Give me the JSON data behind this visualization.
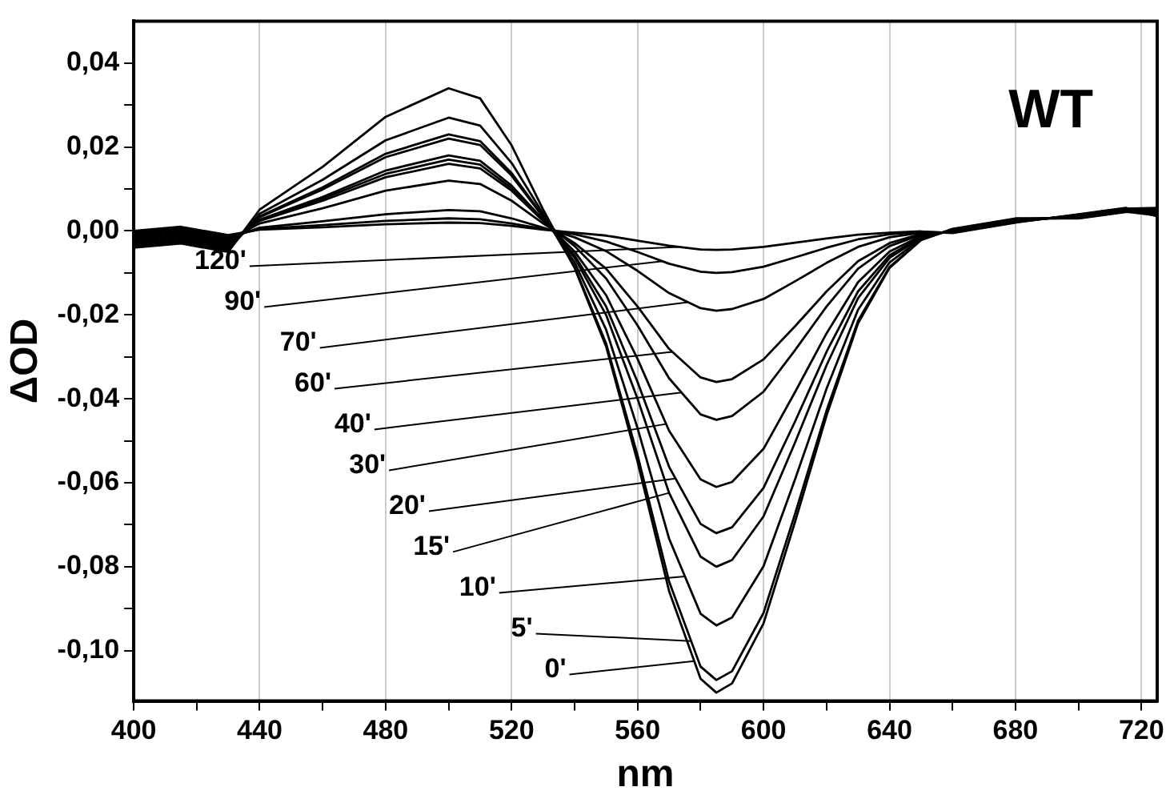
{
  "chart_data": {
    "type": "line",
    "xlabel": "nm",
    "ylabel": "ΔOD",
    "annotations": [
      "WT",
      {
        "text": "120'",
        "x": 573,
        "y": -0.0038
      },
      {
        "text": "90'",
        "x": 568,
        "y": -0.0072
      },
      {
        "text": "70'",
        "x": 576,
        "y": -0.017
      },
      {
        "text": "60'",
        "x": 571,
        "y": -0.0288
      },
      {
        "text": "40'",
        "x": 574,
        "y": -0.0385
      },
      {
        "text": "30'",
        "x": 569,
        "y": -0.046
      },
      {
        "text": "20'",
        "x": 572,
        "y": -0.059
      },
      {
        "text": "15'",
        "x": 570,
        "y": -0.0624
      },
      {
        "text": "10'",
        "x": 575,
        "y": -0.0823
      },
      {
        "text": "5'",
        "x": 577,
        "y": -0.0977
      },
      {
        "text": "0'",
        "x": 578,
        "y": -0.1025
      }
    ],
    "x": [
      400,
      415,
      430,
      440,
      460,
      480,
      500,
      510,
      520,
      530,
      540,
      550,
      560,
      570,
      580,
      585,
      590,
      600,
      610,
      620,
      630,
      640,
      650,
      660,
      680,
      700,
      715,
      725
    ],
    "xlim": [
      400,
      725
    ],
    "ylim": [
      -0.112,
      0.05
    ],
    "xticks": [
      400,
      {
        "value": 420,
        "label": null
      },
      440,
      {
        "value": 460,
        "label": null
      },
      480,
      {
        "value": 500,
        "label": null
      },
      520,
      {
        "value": 540,
        "label": null
      },
      560,
      {
        "value": 580,
        "label": null
      },
      600,
      {
        "value": 620,
        "label": null
      },
      640,
      {
        "value": 660,
        "label": null
      },
      680,
      {
        "value": 700,
        "label": null
      },
      720
    ],
    "yticks": [
      {
        "value": -0.1,
        "label": "-0,10"
      },
      {
        "value": -0.09,
        "label": null
      },
      {
        "value": -0.08,
        "label": "-0,08"
      },
      {
        "value": -0.07,
        "label": null
      },
      {
        "value": -0.06,
        "label": "-0,06"
      },
      {
        "value": -0.05,
        "label": null
      },
      {
        "value": -0.04,
        "label": "-0,04"
      },
      {
        "value": -0.03,
        "label": null
      },
      {
        "value": -0.02,
        "label": "-0,02"
      },
      {
        "value": -0.01,
        "label": null
      },
      {
        "value": 0,
        "label": "0,00"
      },
      {
        "value": 0.01,
        "label": null
      },
      {
        "value": 0.02,
        "label": "0,02"
      },
      {
        "value": 0.03,
        "label": null
      },
      {
        "value": 0.04,
        "label": "0,04"
      }
    ],
    "grid": "x",
    "legend": false,
    "marker": "none",
    "line_style": "solid",
    "series": [
      {
        "color": "#000000",
        "values": [
          0,
          0.001,
          -0.001,
          0.0003,
          0.0009,
          0.0016,
          0.002,
          0.0019,
          0.0012,
          0.0003,
          -0.0004,
          -0.0011,
          -0.0023,
          -0.0035,
          -0.0044,
          -0.0045,
          -0.0044,
          -0.0038,
          -0.0028,
          -0.0018,
          -0.0009,
          -0.0004,
          -0.0001,
          -0.0005,
          0.002,
          0.004,
          0.0055,
          0.0035
        ]
      },
      {
        "color": "#000000",
        "values": [
          -0.0004,
          0.0006,
          -0.0014,
          0.0005,
          0.0014,
          0.0024,
          0.003,
          0.0028,
          0.0018,
          0.0005,
          -0.0008,
          -0.0025,
          -0.005,
          -0.0078,
          -0.0097,
          -0.01,
          -0.0098,
          -0.0085,
          -0.0063,
          -0.004,
          -0.002,
          -0.0008,
          -0.0002,
          -0.0004,
          0.0021,
          0.0039,
          0.0054,
          0.0045
        ]
      },
      {
        "color": "#000000",
        "values": [
          -0.0008,
          0.0002,
          -0.0018,
          0.0008,
          0.0023,
          0.004,
          0.005,
          0.0047,
          0.003,
          0.0008,
          -0.0015,
          -0.0048,
          -0.0095,
          -0.0148,
          -0.0184,
          -0.019,
          -0.0186,
          -0.0162,
          -0.012,
          -0.0076,
          -0.0038,
          -0.0015,
          -0.0004,
          -0.0003,
          0.0022,
          0.0038,
          0.0053,
          0.0055
        ]
      },
      {
        "color": "#000000",
        "values": [
          -0.0012,
          -0.0002,
          -0.0022,
          0.0018,
          0.0054,
          0.0096,
          0.012,
          0.0112,
          0.0072,
          0.0018,
          -0.0029,
          -0.009,
          -0.018,
          -0.0281,
          -0.0349,
          -0.036,
          -0.0353,
          -0.0306,
          -0.0227,
          -0.0144,
          -0.0072,
          -0.0029,
          -0.0007,
          -0.0002,
          0.0023,
          0.0037,
          0.0052,
          0.0043
        ]
      },
      {
        "color": "#000000",
        "values": [
          -0.0016,
          -0.0006,
          -0.0026,
          0.0024,
          0.0072,
          0.0128,
          0.016,
          0.0149,
          0.0096,
          0.0024,
          -0.0036,
          -0.0113,
          -0.0225,
          -0.0351,
          -0.0437,
          -0.045,
          -0.0441,
          -0.0383,
          -0.0284,
          -0.018,
          -0.009,
          -0.0036,
          -0.0009,
          -0.0001,
          0.0024,
          0.0036,
          0.0051,
          0.0053
        ]
      },
      {
        "color": "#000000",
        "values": [
          -0.002,
          -0.001,
          -0.003,
          0.0026,
          0.0077,
          0.0136,
          0.017,
          0.0158,
          0.0102,
          0.0026,
          -0.0049,
          -0.0153,
          -0.0305,
          -0.0476,
          -0.0592,
          -0.061,
          -0.0598,
          -0.0519,
          -0.0384,
          -0.0244,
          -0.0122,
          -0.0049,
          -0.0012,
          0,
          0.0025,
          0.0035,
          0.005,
          0.0041
        ]
      },
      {
        "color": "#000000",
        "values": [
          -0.0024,
          -0.0014,
          -0.0034,
          0.0027,
          0.0081,
          0.0144,
          0.018,
          0.0167,
          0.0108,
          0.0027,
          -0.0058,
          -0.018,
          -0.036,
          -0.0562,
          -0.0698,
          -0.072,
          -0.0706,
          -0.0612,
          -0.0454,
          -0.0288,
          -0.0144,
          -0.0058,
          -0.0014,
          0.0001,
          0.0026,
          0.0034,
          0.0049,
          0.0051
        ]
      },
      {
        "color": "#000000",
        "values": [
          -0.0028,
          -0.0018,
          -0.0038,
          0.0033,
          0.0099,
          0.0176,
          0.022,
          0.0205,
          0.0132,
          0.0033,
          -0.0064,
          -0.02,
          -0.04,
          -0.0624,
          -0.0776,
          -0.08,
          -0.0784,
          -0.068,
          -0.0504,
          -0.032,
          -0.016,
          -0.0064,
          -0.0016,
          0.0002,
          0.0027,
          0.0033,
          0.0048,
          0.0039
        ]
      },
      {
        "color": "#000000",
        "values": [
          -0.0032,
          -0.0022,
          -0.0042,
          0.0035,
          0.0104,
          0.0184,
          0.023,
          0.0214,
          0.0138,
          0.0035,
          -0.0075,
          -0.0235,
          -0.047,
          -0.0733,
          -0.0912,
          -0.094,
          -0.0921,
          -0.0799,
          -0.0592,
          -0.0376,
          -0.0188,
          -0.0075,
          -0.0019,
          0.0003,
          0.0028,
          0.0032,
          0.0047,
          0.0049
        ]
      },
      {
        "color": "#000000",
        "values": [
          -0.0036,
          -0.0026,
          -0.0046,
          0.0041,
          0.0122,
          0.0216,
          0.027,
          0.0251,
          0.0162,
          0.0041,
          -0.0086,
          -0.0268,
          -0.0535,
          -0.0835,
          -0.1038,
          -0.107,
          -0.1049,
          -0.091,
          -0.0674,
          -0.0428,
          -0.0214,
          -0.0086,
          -0.0021,
          0.0004,
          0.0029,
          0.0031,
          0.0046,
          0.0037
        ]
      },
      {
        "color": "#000000",
        "values": [
          -0.004,
          -0.003,
          -0.005,
          0.0051,
          0.0153,
          0.0272,
          0.034,
          0.0316,
          0.0204,
          0.0051,
          -0.0088,
          -0.0275,
          -0.055,
          -0.0858,
          -0.1067,
          -0.11,
          -0.1078,
          -0.0935,
          -0.0693,
          -0.044,
          -0.022,
          -0.0088,
          -0.0022,
          0.0005,
          0.003,
          0.003,
          0.0045,
          0.0047
        ]
      }
    ]
  }
}
